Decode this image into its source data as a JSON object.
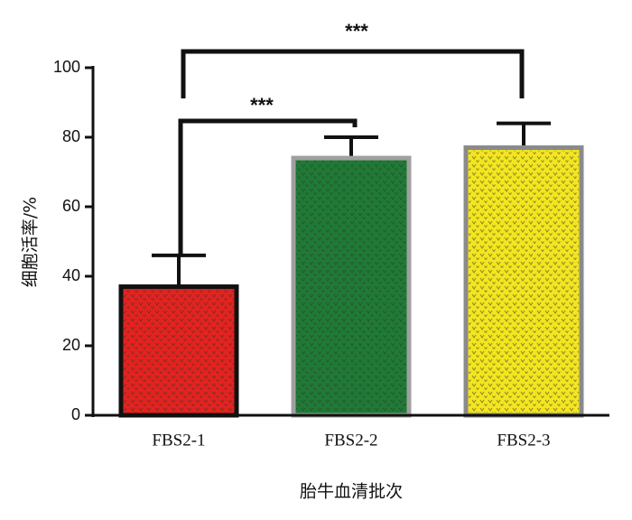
{
  "chart_data": {
    "type": "bar",
    "x_label": "胎牛血清批次",
    "y_label": "细胞活率/%",
    "categories": [
      "FBS2-1",
      "FBS2-2",
      "FBS2-3"
    ],
    "values": [
      37,
      74,
      77
    ],
    "errors": [
      9,
      6,
      7
    ],
    "colors": [
      "#e3231f",
      "#1f7a35",
      "#f3e51f"
    ],
    "edge_colors": [
      "#111111",
      "#a0a0a0",
      "#8a8a8a"
    ],
    "ylim": [
      0,
      100
    ],
    "yticks": [
      0,
      20,
      40,
      60,
      80,
      100
    ],
    "annotations": [
      "***",
      "***"
    ]
  }
}
